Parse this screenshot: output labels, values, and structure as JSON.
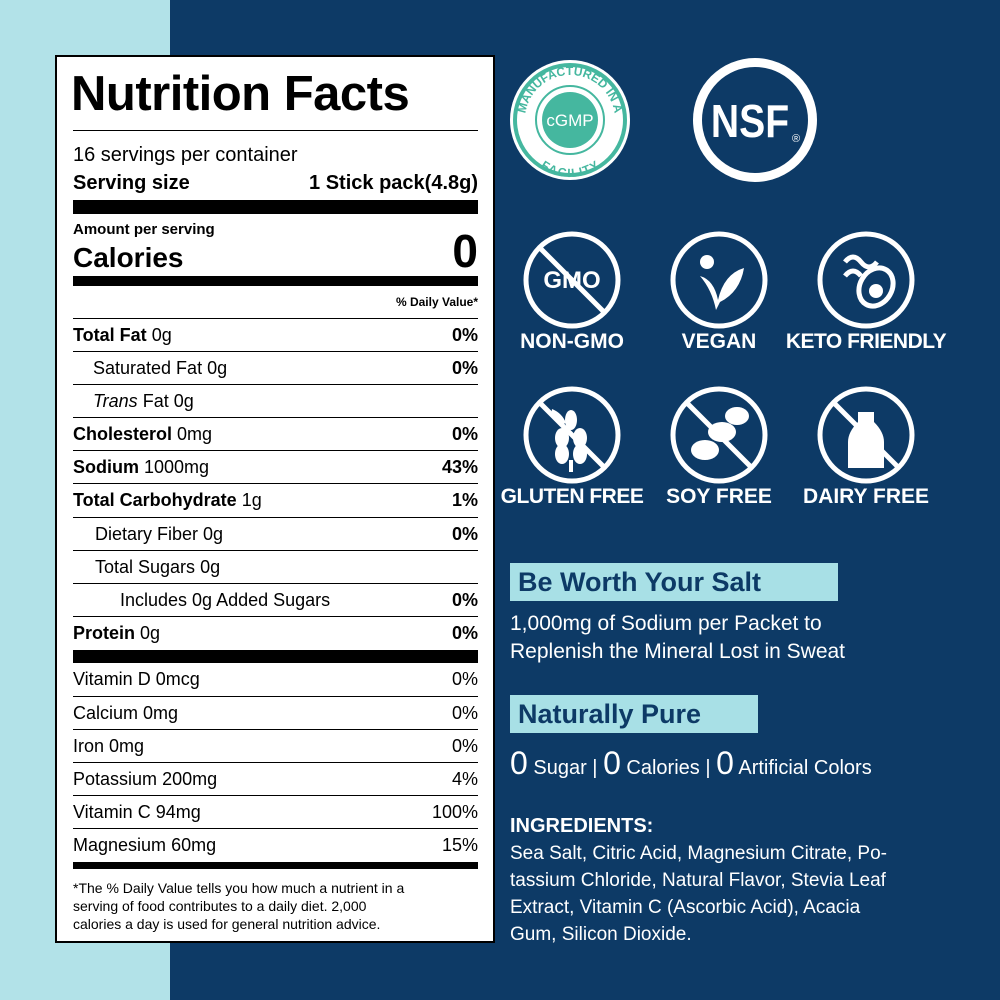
{
  "nutrition_facts": {
    "title": "Nutrition Facts",
    "servings_per_container": "16 servings per container",
    "serving_size": {
      "label": "Serving size",
      "value": "1 Stick pack(4.8g)"
    },
    "amount_per_serving": "Amount per serving",
    "calories": {
      "label": "Calories",
      "value": "0"
    },
    "daily_value_header": "% Daily Value*",
    "nutrients": [
      {
        "label": "Total Fat",
        "amount": "0g",
        "dv": "0%"
      },
      {
        "label": "Saturated Fat",
        "amount": "0g",
        "dv": "0%"
      },
      {
        "label_italic": "Trans",
        "label": "Fat",
        "amount": "0g"
      },
      {
        "label": "Cholesterol",
        "amount": "0mg",
        "dv": "0%"
      },
      {
        "label": "Sodium",
        "amount": "1000mg",
        "dv": "43%"
      },
      {
        "label": "Total Carbohydrate",
        "amount": "1g",
        "dv": "1%"
      },
      {
        "label": "Dietary Fiber",
        "amount": "0g",
        "dv": "0%"
      },
      {
        "label": "Total Sugars",
        "amount": "0g"
      },
      {
        "label": "Includes 0g Added Sugars",
        "dv": "0%"
      },
      {
        "label": "Protein",
        "amount": "0g",
        "dv": "0%"
      }
    ],
    "vitamins": [
      {
        "label": "Vitamin D",
        "amount": "0mcg",
        "dv": "0%"
      },
      {
        "label": "Calcium",
        "amount": "0mg",
        "dv": "0%"
      },
      {
        "label": "Iron",
        "amount": "0mg",
        "dv": "0%"
      },
      {
        "label": "Potassium",
        "amount": "200mg",
        "dv": "4%"
      },
      {
        "label": "Vitamin C",
        "amount": "94mg",
        "dv": "100%"
      },
      {
        "label": "Magnesium",
        "amount": "60mg",
        "dv": "15%"
      }
    ],
    "footnote": [
      "*The % Daily Value tells you how much a nutrient in a",
      "serving of food contributes to a daily diet. 2,000",
      "calories a day is used for general nutrition advice."
    ]
  },
  "badges": {
    "cgmp": {
      "top": "MANUFACTURED IN A",
      "center": "cGMP",
      "bottom": "FACILITY"
    },
    "nsf": {
      "text": "NSF",
      "mark": "®"
    }
  },
  "features": [
    {
      "label": "NON-GMO",
      "icon_text": "GMO"
    },
    {
      "label": "VEGAN"
    },
    {
      "label": "KETO FRIENDLY"
    },
    {
      "label": "GLUTEN FREE"
    },
    {
      "label": "SOY FREE"
    },
    {
      "label": "DAIRY FREE"
    }
  ],
  "headline_1": "Be Worth Your Salt",
  "description_1": [
    "1,000mg of Sodium per Packet to",
    "Replenish the Mineral Lost in Sweat"
  ],
  "headline_2": "Naturally Pure",
  "pure_claims": [
    {
      "value": "0",
      "label": "Sugar"
    },
    {
      "value": "0",
      "label": "Calories"
    },
    {
      "value": "0",
      "label": "Artificial Colors"
    }
  ],
  "separator": "|",
  "ingredients": {
    "heading": "INGREDIENTS:",
    "lines": [
      "Sea Salt, Citric Acid, Magnesium Citrate, Po-",
      "tassium Chloride, Natural Flavor, Stevia Leaf",
      "Extract, Vitamin C (Ascorbic Acid), Acacia",
      "Gum, Silicon Dioxide."
    ]
  }
}
